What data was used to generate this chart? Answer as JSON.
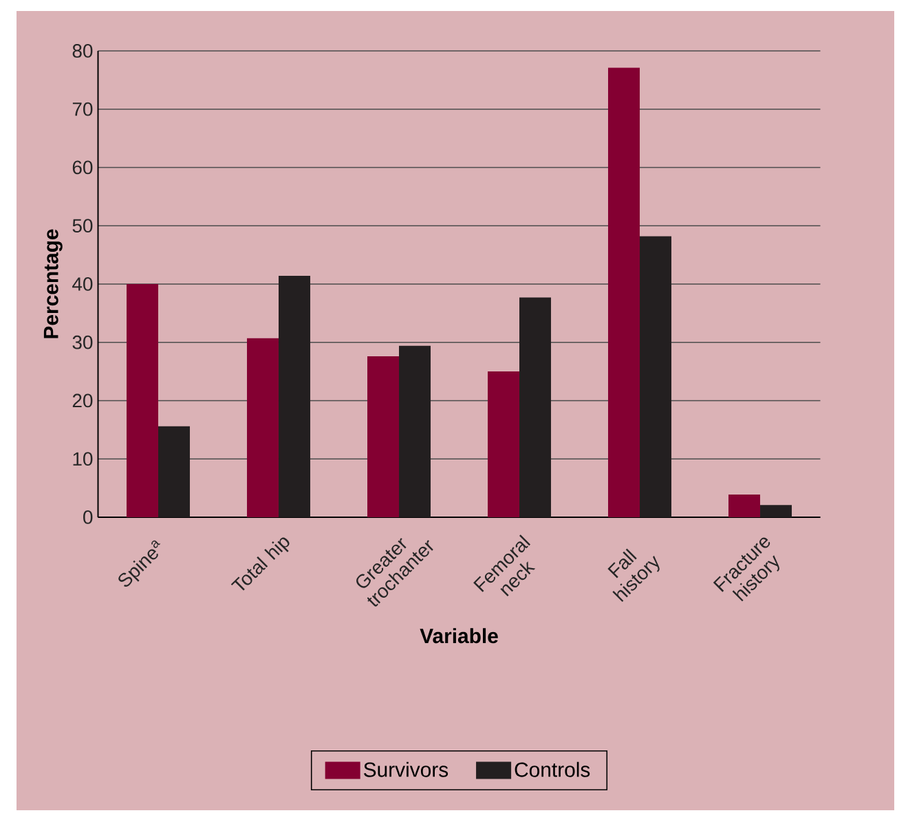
{
  "chart_data": {
    "type": "bar",
    "xlabel": "Variable",
    "ylabel": "Percentage",
    "categories": [
      "Spine$^{a}$",
      "Total hip",
      "Greater trochanter",
      "Femoral neck",
      "Fall history",
      "Fracture history"
    ],
    "series": [
      {
        "name": "Survivors",
        "color": "#840032",
        "values": [
          40,
          30.7,
          27.6,
          25,
          77.1,
          3.9
        ]
      },
      {
        "name": "Controls",
        "color": "#231f20",
        "values": [
          15.6,
          41.4,
          29.4,
          37.7,
          48.2,
          2.1
        ]
      }
    ],
    "ylim": [
      0,
      80
    ],
    "yticks": [
      0,
      10,
      20,
      30,
      40,
      50,
      60,
      70,
      80
    ],
    "grid": "y",
    "legend": "bottom"
  }
}
